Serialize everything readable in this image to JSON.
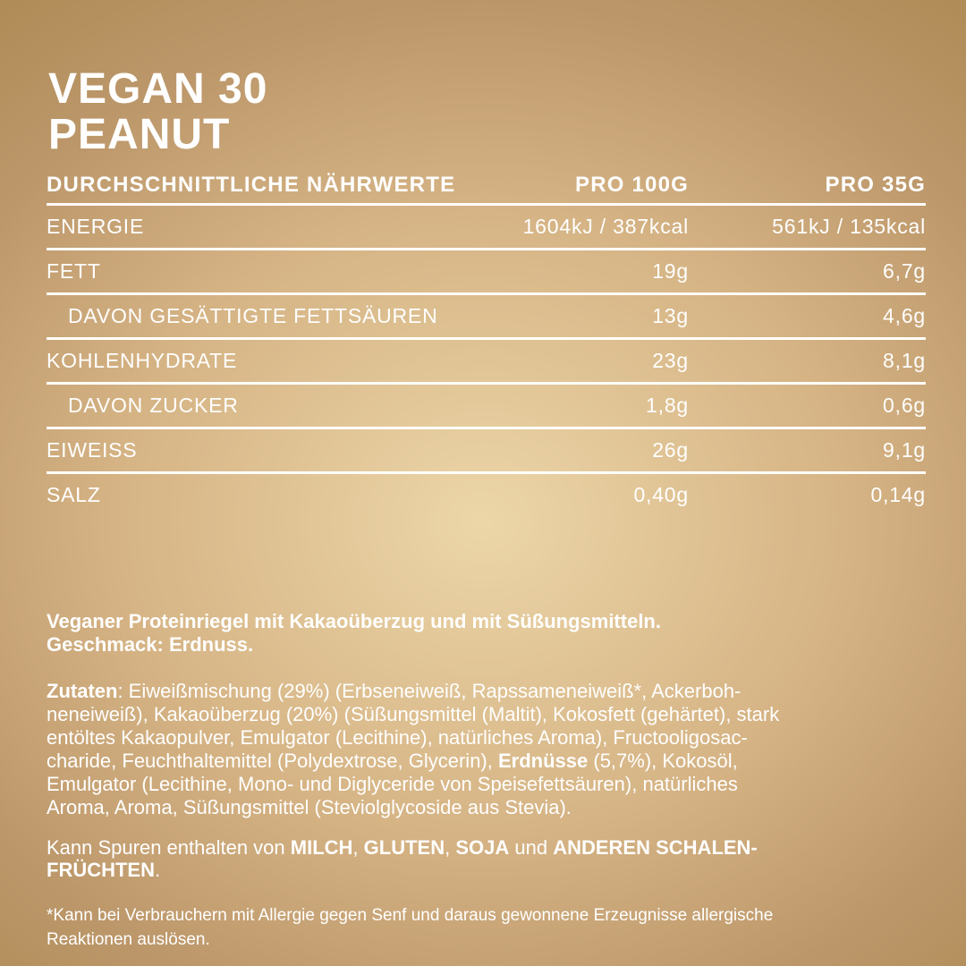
{
  "page": {
    "background_center_color": "#ecd6a8",
    "background_edge_color": "#b08c58",
    "text_color": "#ffffff"
  },
  "title": {
    "line1": "VEGAN 30",
    "line2": "PEANUT"
  },
  "table": {
    "header": {
      "label": "DURCHSCHNITTLICHE NÄHRWERTE",
      "per100g": "PRO 100G",
      "per35g": "PRO 35G"
    },
    "rows": [
      {
        "label": "ENERGIE",
        "indent": false,
        "per100g": "1604kJ / 387kcal",
        "per35g": "561kJ / 135kcal"
      },
      {
        "label": "FETT",
        "indent": false,
        "per100g": "19g",
        "per35g": "6,7g"
      },
      {
        "label": "DAVON GESÄTTIGTE FETTSÄUREN",
        "indent": true,
        "per100g": "13g",
        "per35g": "4,6g"
      },
      {
        "label": "KOHLENHYDRATE",
        "indent": false,
        "per100g": "23g",
        "per35g": "8,1g"
      },
      {
        "label": "DAVON ZUCKER",
        "indent": true,
        "per100g": "1,8g",
        "per35g": "0,6g"
      },
      {
        "label": "EIWEISS",
        "indent": false,
        "per100g": "26g",
        "per35g": "9,1g"
      },
      {
        "label": "SALZ",
        "indent": false,
        "per100g": "0,40g",
        "per35g": "0,14g"
      }
    ]
  },
  "paragraphs": {
    "description": {
      "lines": [
        [
          {
            "text": "Veganer Proteinriegel mit Kakaoüberzug und mit Süßungsmitteln.",
            "bold": true
          }
        ],
        [
          {
            "text": "Geschmack: Erdnuss.",
            "bold": true
          }
        ]
      ]
    },
    "ingredients": {
      "lines": [
        [
          {
            "text": "Zutaten",
            "bold": true
          },
          {
            "text": ": Eiweißmischung (29%) (Erbseneiweiß, Rapssameneiweiß*, Ackerboh-",
            "bold": false
          }
        ],
        [
          {
            "text": "neneiweiß), Kakaoüberzug (20%) (Süßungsmittel (Maltit), Kokosfett (gehärtet), stark",
            "bold": false
          }
        ],
        [
          {
            "text": "entöltes Kakaopulver, Emulgator (Lecithine), natürliches Aroma), Fructooligosac-",
            "bold": false
          }
        ],
        [
          {
            "text": "charide, Feuchthaltemittel (Polydextrose, Glycerin), ",
            "bold": false
          },
          {
            "text": "Erdnüsse",
            "bold": true
          },
          {
            "text": " (5,7%), Kokosöl,",
            "bold": false
          }
        ],
        [
          {
            "text": "Emulgator (Lecithine, Mono- und Diglyceride von Speisefettsäuren), natürliches",
            "bold": false
          }
        ],
        [
          {
            "text": "Aroma, Aroma, Süßungsmittel (Steviolglycoside aus Stevia).",
            "bold": false
          }
        ]
      ]
    },
    "allergen_traces": {
      "lines": [
        [
          {
            "text": "Kann Spuren enthalten von ",
            "bold": false
          },
          {
            "text": "MILCH",
            "bold": true
          },
          {
            "text": ", ",
            "bold": false
          },
          {
            "text": "GLUTEN",
            "bold": true
          },
          {
            "text": ", ",
            "bold": false
          },
          {
            "text": "SOJA",
            "bold": true
          },
          {
            "text": " und ",
            "bold": false
          },
          {
            "text": "ANDEREN SCHALEN-",
            "bold": true
          }
        ],
        [
          {
            "text": "FRÜCHTEN",
            "bold": true
          },
          {
            "text": ".",
            "bold": false
          }
        ]
      ]
    },
    "footnote": {
      "lines": [
        [
          {
            "text": "*Kann bei Verbrauchern mit Allergie gegen Senf und daraus gewonnene Erzeugnisse allergische",
            "bold": false
          }
        ],
        [
          {
            "text": "Reaktionen auslösen.",
            "bold": false
          }
        ]
      ]
    }
  }
}
